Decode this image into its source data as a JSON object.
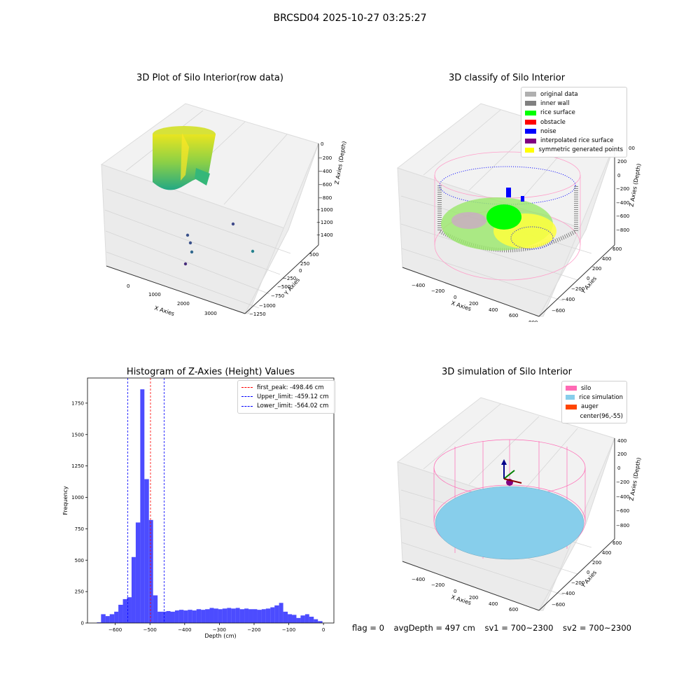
{
  "suptitle": "BRCSD04 2025-10-27 03:25:27",
  "plots": {
    "raw": {
      "title": "3D Plot of Silo Interior(row data)",
      "xlabel": "X Axies",
      "ylabel": "Y Axies",
      "zlabel": "Z Axies (Depth)",
      "x_ticks": [
        "0",
        "1000",
        "2000",
        "3000"
      ],
      "y_ticks": [
        "500",
        "250",
        "0",
        "−250",
        "−500",
        "−750",
        "−1000",
        "−1250"
      ],
      "z_ticks": [
        "0",
        "−200",
        "−400",
        "−600",
        "−800",
        "−1000",
        "−1200",
        "−1400"
      ]
    },
    "classify": {
      "title": "3D classify of Silo Interior",
      "xlabel": "X Axies",
      "ylabel": "Y Axies",
      "zlabel": "Z Axies (Depth)",
      "x_ticks": [
        "−400",
        "−200",
        "0",
        "200",
        "400",
        "600",
        "800"
      ],
      "y_ticks": [
        "600",
        "400",
        "200",
        "0",
        "−200",
        "−400",
        "−600"
      ],
      "z_ticks": [
        "200",
        "0",
        "−200",
        "−400",
        "−600",
        "−800"
      ],
      "z_partial_tick": "00",
      "legend": [
        {
          "label": "original data",
          "color": "#b0b0b0"
        },
        {
          "label": "inner wall",
          "color": "#808080"
        },
        {
          "label": "rice surface",
          "color": "#00ff00"
        },
        {
          "label": "obstacle",
          "color": "#ff0000"
        },
        {
          "label": "noise",
          "color": "#0000ff"
        },
        {
          "label": "interpolated rice surface",
          "color": "#800080"
        },
        {
          "label": "symmetric generated points",
          "color": "#ffff00"
        }
      ]
    },
    "simulation": {
      "title": "3D simulation of Silo Interior",
      "xlabel": "X Axies",
      "ylabel": "Y Axies",
      "zlabel": "Z Axies (Depth)",
      "x_ticks": [
        "−400",
        "−200",
        "0",
        "200",
        "400",
        "600"
      ],
      "y_ticks": [
        "600",
        "400",
        "200",
        "0",
        "−200",
        "−400",
        "−600"
      ],
      "z_ticks": [
        "400",
        "200",
        "0",
        "−200",
        "−400",
        "−600",
        "−800"
      ],
      "legend": [
        {
          "label": "silo",
          "color": "#ff69b4"
        },
        {
          "label": "rice simulation",
          "color": "#87ceeb"
        },
        {
          "label": "auger",
          "color": "#ff4500"
        },
        {
          "label": "center(96,-55)",
          "color": ""
        }
      ]
    }
  },
  "chart_data": {
    "type": "bar",
    "title": "Histogram of Z-Axies (Height) Values",
    "xlabel": "Depth (cm)",
    "ylabel": "Frequency",
    "xlim": [
      -680,
      30
    ],
    "ylim": [
      0,
      1950
    ],
    "x_ticks": [
      -600,
      -500,
      -400,
      -300,
      -200,
      -100,
      0
    ],
    "y_ticks": [
      0,
      250,
      500,
      750,
      1000,
      1250,
      1500,
      1750
    ],
    "bar_color": "#0000ff",
    "bins": [
      {
        "x0": -653,
        "x1": -641,
        "count": 5
      },
      {
        "x0": -641,
        "x1": -628,
        "count": 70
      },
      {
        "x0": -628,
        "x1": -616,
        "count": 55
      },
      {
        "x0": -616,
        "x1": -603,
        "count": 70
      },
      {
        "x0": -603,
        "x1": -591,
        "count": 90
      },
      {
        "x0": -591,
        "x1": -578,
        "count": 145
      },
      {
        "x0": -578,
        "x1": -566,
        "count": 190
      },
      {
        "x0": -566,
        "x1": -553,
        "count": 205
      },
      {
        "x0": -553,
        "x1": -541,
        "count": 525
      },
      {
        "x0": -541,
        "x1": -528,
        "count": 800
      },
      {
        "x0": -528,
        "x1": -516,
        "count": 1860
      },
      {
        "x0": -516,
        "x1": -503,
        "count": 1145
      },
      {
        "x0": -503,
        "x1": -491,
        "count": 820
      },
      {
        "x0": -491,
        "x1": -478,
        "count": 220
      },
      {
        "x0": -478,
        "x1": -466,
        "count": 90
      },
      {
        "x0": -466,
        "x1": -453,
        "count": 90
      },
      {
        "x0": -453,
        "x1": -441,
        "count": 95
      },
      {
        "x0": -441,
        "x1": -428,
        "count": 90
      },
      {
        "x0": -428,
        "x1": -416,
        "count": 100
      },
      {
        "x0": -416,
        "x1": -403,
        "count": 105
      },
      {
        "x0": -403,
        "x1": -391,
        "count": 100
      },
      {
        "x0": -391,
        "x1": -378,
        "count": 105
      },
      {
        "x0": -378,
        "x1": -366,
        "count": 100
      },
      {
        "x0": -366,
        "x1": -353,
        "count": 110
      },
      {
        "x0": -353,
        "x1": -341,
        "count": 105
      },
      {
        "x0": -341,
        "x1": -328,
        "count": 110
      },
      {
        "x0": -328,
        "x1": -316,
        "count": 120
      },
      {
        "x0": -316,
        "x1": -303,
        "count": 115
      },
      {
        "x0": -303,
        "x1": -291,
        "count": 110
      },
      {
        "x0": -291,
        "x1": -278,
        "count": 115
      },
      {
        "x0": -278,
        "x1": -266,
        "count": 120
      },
      {
        "x0": -266,
        "x1": -253,
        "count": 115
      },
      {
        "x0": -253,
        "x1": -241,
        "count": 120
      },
      {
        "x0": -241,
        "x1": -228,
        "count": 110
      },
      {
        "x0": -228,
        "x1": -216,
        "count": 115
      },
      {
        "x0": -216,
        "x1": -203,
        "count": 110
      },
      {
        "x0": -203,
        "x1": -191,
        "count": 110
      },
      {
        "x0": -191,
        "x1": -178,
        "count": 105
      },
      {
        "x0": -178,
        "x1": -166,
        "count": 110
      },
      {
        "x0": -166,
        "x1": -153,
        "count": 115
      },
      {
        "x0": -153,
        "x1": -141,
        "count": 125
      },
      {
        "x0": -141,
        "x1": -128,
        "count": 140
      },
      {
        "x0": -128,
        "x1": -116,
        "count": 160
      },
      {
        "x0": -116,
        "x1": -103,
        "count": 90
      },
      {
        "x0": -103,
        "x1": -91,
        "count": 70
      },
      {
        "x0": -91,
        "x1": -78,
        "count": 65
      },
      {
        "x0": -78,
        "x1": -66,
        "count": 40
      },
      {
        "x0": -66,
        "x1": -53,
        "count": 60
      },
      {
        "x0": -53,
        "x1": -41,
        "count": 70
      },
      {
        "x0": -41,
        "x1": -28,
        "count": 50
      },
      {
        "x0": -28,
        "x1": -16,
        "count": 30
      },
      {
        "x0": -16,
        "x1": -3,
        "count": 15
      }
    ],
    "vlines": [
      {
        "label": "first_peak: -498.46 cm",
        "x": -498.46,
        "color": "#ff0000"
      },
      {
        "label": "Upper_limit: -459.12 cm",
        "x": -459.12,
        "color": "#0000ff"
      },
      {
        "label": "Lower_limit: -564.02 cm",
        "x": -564.02,
        "color": "#0000ff"
      }
    ],
    "legend_position": "upper right"
  },
  "footer": {
    "flag": "flag = 0",
    "avg_depth": "avgDepth = 497 cm",
    "sv1": "sv1 = 700~2300",
    "sv2": "sv2 = 700~2300"
  }
}
